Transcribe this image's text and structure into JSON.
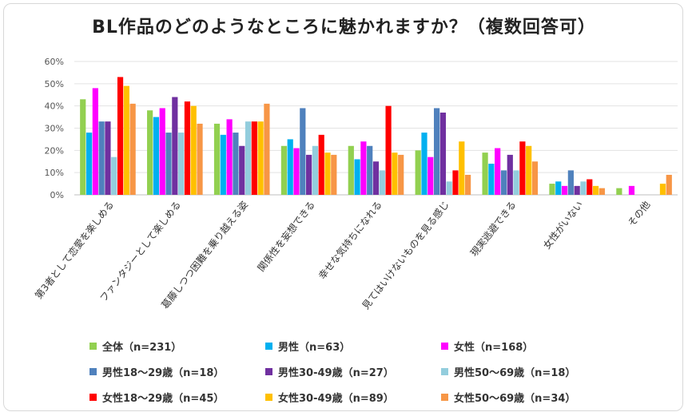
{
  "chart_data": {
    "type": "bar",
    "title": "BL作品のどのようなところに魅かれますか？（複数回答可）",
    "categories": [
      "第3者として恋愛を楽しめる",
      "ファンタジーとして楽しめる",
      "葛藤しつつ困難を乗り越える姿",
      "関係性を妄想できる",
      "幸せな気持ちになれる",
      "見てはいけないものを見る感じ",
      "現実逃避できる",
      "女性がいない",
      "その他"
    ],
    "ylim": [
      0,
      60
    ],
    "yticks": [
      "0%",
      "10%",
      "20%",
      "30%",
      "40%",
      "50%",
      "60%"
    ],
    "grid": true,
    "legend_position": "bottom",
    "series": [
      {
        "name": "全体（n=231）",
        "color": "#92d050",
        "values": [
          43,
          38,
          32,
          22,
          22,
          20,
          19,
          5,
          3
        ]
      },
      {
        "name": "男性（n=63）",
        "color": "#00b0f0",
        "values": [
          28,
          35,
          27,
          25,
          16,
          28,
          14,
          6,
          0
        ]
      },
      {
        "name": "女性（n=168）",
        "color": "#ff00ff",
        "values": [
          48,
          39,
          34,
          21,
          24,
          17,
          21,
          4,
          4
        ]
      },
      {
        "name": "男性18〜29歳（n=18）",
        "color": "#4f81bd",
        "values": [
          33,
          28,
          28,
          39,
          22,
          39,
          11,
          11,
          0
        ]
      },
      {
        "name": "男性30-49歳（n=27）",
        "color": "#7030a0",
        "values": [
          33,
          44,
          22,
          18,
          15,
          37,
          18,
          4,
          0
        ]
      },
      {
        "name": "男性50〜69歳（n=18）",
        "color": "#93cddd",
        "values": [
          17,
          28,
          33,
          22,
          11,
          6,
          11,
          6,
          0
        ]
      },
      {
        "name": "女性18〜29歳（n=45）",
        "color": "#ff0000",
        "values": [
          53,
          42,
          33,
          27,
          40,
          11,
          24,
          7,
          0
        ]
      },
      {
        "name": "女性30-49歳（n=89）",
        "color": "#ffc000",
        "values": [
          49,
          40,
          33,
          19,
          19,
          24,
          22,
          4,
          5
        ]
      },
      {
        "name": "女性50〜69歳（n=34）",
        "color": "#f79646",
        "values": [
          41,
          32,
          41,
          18,
          18,
          9,
          15,
          3,
          9
        ]
      }
    ]
  }
}
